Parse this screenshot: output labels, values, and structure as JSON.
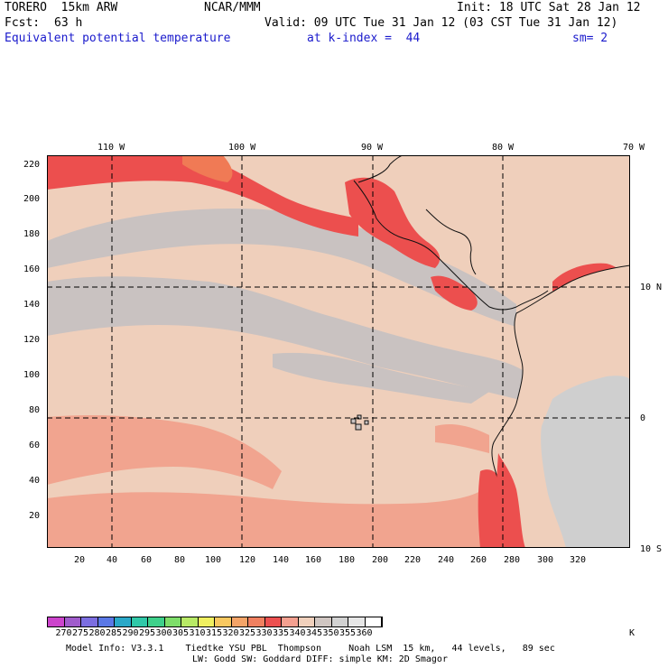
{
  "header": {
    "model_name": "TORERO  15km ARW",
    "center": "NCAR/MMM",
    "init": "Init: 18 UTC Sat 28 Jan 12",
    "fcst_label": "Fcst:",
    "fcst_value": "63 h",
    "valid": "Valid: 09 UTC Tue 31 Jan 12 (03 CST Tue 31 Jan 12)",
    "field": "Equivalent potential temperature",
    "level": "at k-index =  44",
    "smoothing": "sm= 2"
  },
  "map": {
    "lon_labels": [
      "110 W",
      "100 W",
      "90 W",
      "80 W",
      "70 W"
    ],
    "lat_labels": [
      "10 N",
      "0",
      "10 S"
    ],
    "y_ticks": [
      "220",
      "200",
      "180",
      "160",
      "140",
      "120",
      "100",
      "80",
      "60",
      "40",
      "20"
    ],
    "x_ticks": [
      "20",
      "40",
      "60",
      "80",
      "100",
      "120",
      "140",
      "160",
      "180",
      "200",
      "220",
      "240",
      "260",
      "280",
      "300",
      "320"
    ],
    "colors": {
      "ocean_gray": "#c9c2c1",
      "light_peach": "#efcfbb",
      "salmon": "#f1a48f",
      "red": "#ec4f4e",
      "orange_red": "#f07a55",
      "land_gray": "#cfcfcf"
    }
  },
  "colorbar": {
    "labels": [
      "270",
      "275",
      "280",
      "285",
      "290",
      "295",
      "300",
      "305",
      "310",
      "315",
      "320",
      "325",
      "330",
      "335",
      "340",
      "345",
      "350",
      "355",
      "360"
    ],
    "unit": "K",
    "colors": [
      "#cc44cc",
      "#a05ccc",
      "#7c6ee0",
      "#5a78e6",
      "#2aa8c8",
      "#30c8a8",
      "#3ed08a",
      "#7ede6a",
      "#b8ea66",
      "#f0f060",
      "#f8c860",
      "#f4a468",
      "#f08060",
      "#ec5050",
      "#f4a090",
      "#f0d0bc",
      "#d0c6c2",
      "#d2d2d2",
      "#e6e6e6",
      "#ffffff"
    ]
  },
  "footer": {
    "line1": "Model Info: V3.3.1    Tiedtke YSU PBL  Thompson     Noah LSM  15 km,   44 levels,   89 sec",
    "line2": "LW: Godd SW: Goddard DIFF: simple KM: 2D Smagor"
  }
}
